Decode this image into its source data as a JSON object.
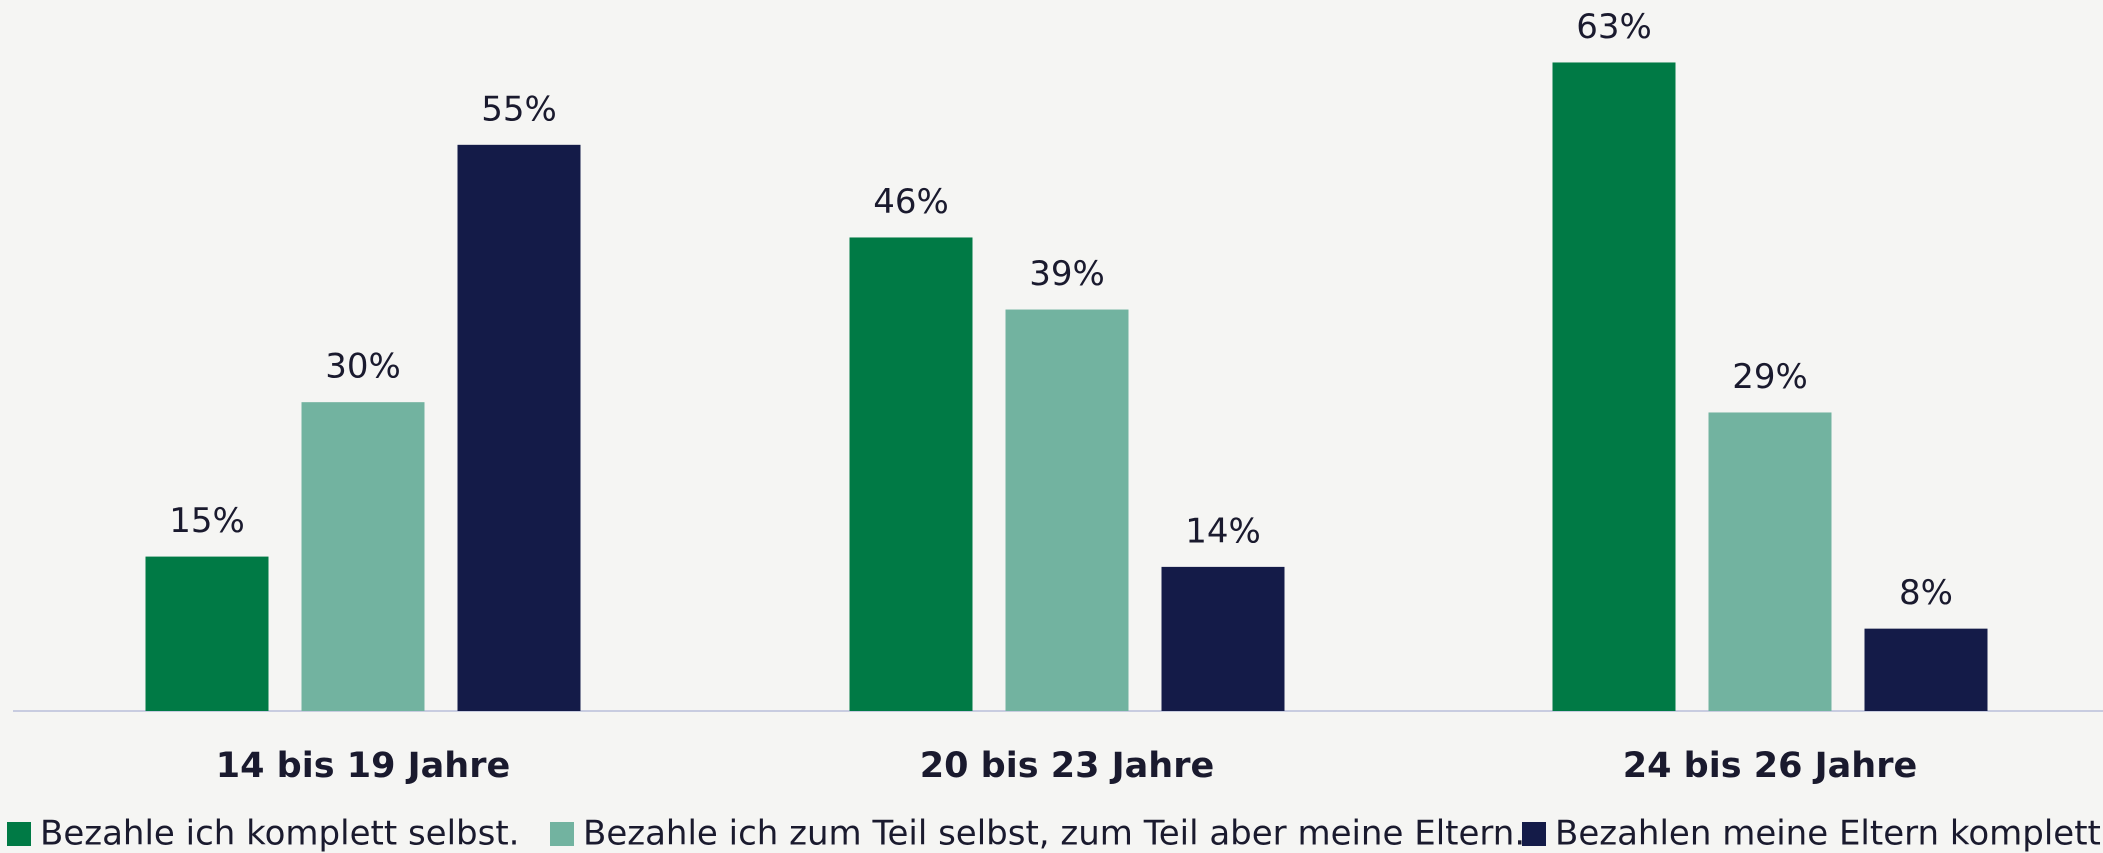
{
  "chart_data": {
    "type": "bar",
    "categories": [
      "14 bis 19 Jahre",
      "20 bis 23 Jahre",
      "24 bis 26 Jahre"
    ],
    "series": [
      {
        "name": "Bezahle ich komplett selbst.",
        "color": "#007a45",
        "values": [
          15,
          46,
          63
        ],
        "value_labels": [
          "15%",
          "46%",
          "63%"
        ]
      },
      {
        "name": "Bezahle ich zum Teil selbst, zum Teil aber meine Eltern.",
        "color": "#72b3a0",
        "values": [
          30,
          39,
          29
        ],
        "value_labels": [
          "30%",
          "39%",
          "29%"
        ]
      },
      {
        "name": "Bezahlen meine Eltern komplett.",
        "color": "#141b48",
        "values": [
          55,
          14,
          8
        ],
        "value_labels": [
          "55%",
          "14%",
          "8%"
        ]
      }
    ],
    "ylim": [
      0,
      68
    ],
    "legend": "bottom"
  }
}
